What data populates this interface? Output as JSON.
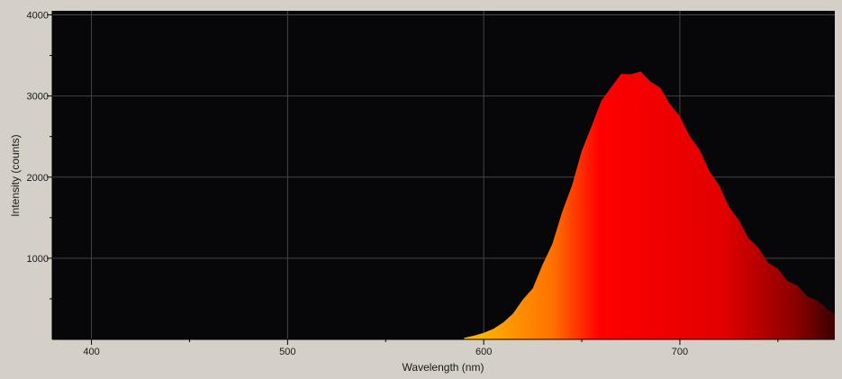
{
  "chart_data": {
    "type": "area",
    "title": "",
    "xlabel": "Wavelength (nm)",
    "ylabel": "Intensity (counts)",
    "xlim": [
      380,
      779
    ],
    "ylim": [
      0,
      4050
    ],
    "x_major_ticks": [
      400,
      500,
      600,
      700
    ],
    "x_minor_ticks": [
      450,
      550,
      650,
      750
    ],
    "y_major_ticks": [
      1000,
      2000,
      3000,
      4000
    ],
    "y_minor_ticks": [
      500,
      1500,
      2500,
      3500
    ],
    "x_tick_labels": [
      "400",
      "500",
      "600",
      "700"
    ],
    "y_tick_labels": [
      "1000",
      "2000",
      "3000",
      "4000"
    ],
    "grid": true,
    "fill_style": "visible-spectrum gradient (orange to red to dark red)",
    "colors": {
      "plot_background": "#070609",
      "frame_background": "#d4d0c8",
      "grid": "#454545",
      "spectrum_orange": "#ffb000",
      "spectrum_red": "#ff0000",
      "spectrum_dark_red": "#3a0000"
    },
    "series": [
      {
        "x": [
          590,
          595,
          600,
          605,
          610,
          615,
          620,
          625,
          630,
          635,
          640,
          645,
          650,
          655,
          660,
          665,
          670,
          675,
          680,
          685,
          690,
          695,
          700,
          705,
          710,
          715,
          720,
          725,
          730,
          735,
          740,
          745,
          750,
          755,
          760,
          765,
          770,
          775,
          779
        ],
        "values": [
          20,
          45,
          80,
          130,
          210,
          320,
          470,
          650,
          900,
          1200,
          1550,
          1920,
          2300,
          2650,
          2920,
          3130,
          3250,
          3290,
          3280,
          3200,
          3080,
          2920,
          2730,
          2530,
          2320,
          2100,
          1880,
          1660,
          1450,
          1270,
          1110,
          970,
          850,
          740,
          640,
          550,
          460,
          380,
          320
        ]
      }
    ]
  }
}
